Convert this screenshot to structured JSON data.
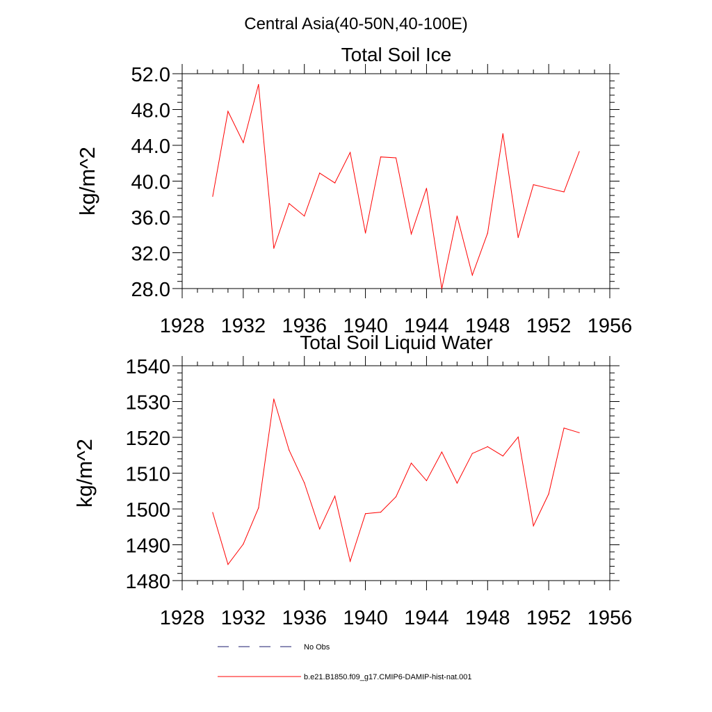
{
  "figure_title": "Central Asia(40-50N,40-100E)",
  "legend": {
    "items": [
      {
        "label": "No Obs",
        "style": "dashed",
        "color": "#1a1a6e"
      },
      {
        "label": "b.e21.B1850.f09_g17.CMIP6-DAMIP-hist-nat.001",
        "style": "solid",
        "color": "#ff0000"
      }
    ]
  },
  "chart_data": [
    {
      "type": "line",
      "title": "Total Soil Ice",
      "xlabel": "",
      "ylabel": "kg/m^2",
      "xlim": [
        1928,
        1956
      ],
      "ylim": [
        28.0,
        52.0
      ],
      "xticks": [
        1928,
        1932,
        1936,
        1940,
        1944,
        1948,
        1952,
        1956
      ],
      "xticklabels": [
        "1928",
        "1932",
        "1936",
        "1940",
        "1944",
        "1948",
        "1952",
        "1956"
      ],
      "yticks": [
        28.0,
        32.0,
        36.0,
        40.0,
        44.0,
        48.0,
        52.0
      ],
      "yticklabels": [
        "28.0",
        "32.0",
        "36.0",
        "40.0",
        "44.0",
        "48.0",
        "52.0"
      ],
      "series": [
        {
          "name": "b.e21.B1850.f09_g17.CMIP6-DAMIP-hist-nat.001",
          "color": "#ff0000",
          "x": [
            1930,
            1931,
            1932,
            1933,
            1934,
            1935,
            1936,
            1937,
            1938,
            1939,
            1940,
            1941,
            1942,
            1943,
            1944,
            1945,
            1946,
            1947,
            1948,
            1949,
            1950,
            1951,
            1952,
            1953,
            1954
          ],
          "y": [
            38.3,
            47.8,
            44.3,
            50.8,
            32.5,
            37.5,
            36.1,
            40.9,
            39.8,
            43.2,
            34.2,
            42.7,
            42.6,
            34.1,
            39.2,
            28.0,
            36.1,
            29.5,
            34.2,
            45.3,
            33.7,
            39.6,
            39.2,
            38.8,
            43.3
          ]
        }
      ]
    },
    {
      "type": "line",
      "title": "Total Soil Liquid Water",
      "xlabel": "",
      "ylabel": "kg/m^2",
      "xlim": [
        1928,
        1956
      ],
      "ylim": [
        1480,
        1540
      ],
      "xticks": [
        1928,
        1932,
        1936,
        1940,
        1944,
        1948,
        1952,
        1956
      ],
      "xticklabels": [
        "1928",
        "1932",
        "1936",
        "1940",
        "1944",
        "1948",
        "1952",
        "1956"
      ],
      "yticks": [
        1480,
        1490,
        1500,
        1510,
        1520,
        1530,
        1540
      ],
      "yticklabels": [
        "1480",
        "1490",
        "1500",
        "1510",
        "1520",
        "1530",
        "1540"
      ],
      "series": [
        {
          "name": "b.e21.B1850.f09_g17.CMIP6-DAMIP-hist-nat.001",
          "color": "#ff0000",
          "x": [
            1930,
            1931,
            1932,
            1933,
            1934,
            1935,
            1936,
            1937,
            1938,
            1939,
            1940,
            1941,
            1942,
            1943,
            1944,
            1945,
            1946,
            1947,
            1948,
            1949,
            1950,
            1951,
            1952,
            1953,
            1954
          ],
          "y": [
            1499,
            1484.5,
            1490.2,
            1500.3,
            1530.7,
            1516.4,
            1507.3,
            1494.4,
            1503.6,
            1485.4,
            1498.7,
            1499.1,
            1503.4,
            1512.8,
            1507.9,
            1515.9,
            1507.2,
            1515.5,
            1517.4,
            1514.8,
            1520.1,
            1495.3,
            1504.2,
            1522.6,
            1521.3
          ]
        }
      ]
    }
  ]
}
